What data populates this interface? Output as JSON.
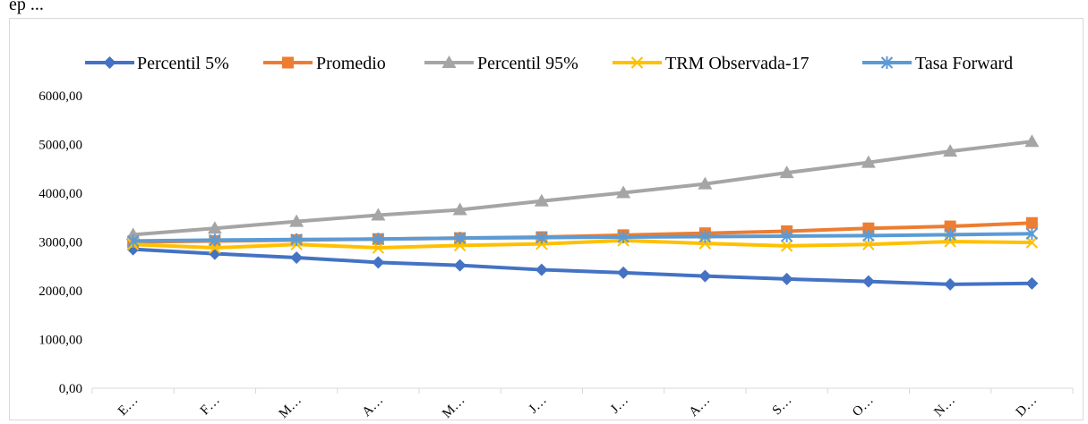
{
  "header": {
    "caption": "ep ... "
  },
  "chart_data": {
    "type": "line",
    "categories": [
      "E…",
      "F…",
      "M…",
      "A…",
      "M…",
      "J…",
      "J…",
      "A…",
      "S…",
      "O…",
      "N…",
      "D…"
    ],
    "ylim": [
      0,
      6000
    ],
    "yticks": [
      "0,00",
      "1000,00",
      "2000,00",
      "3000,00",
      "4000,00",
      "5000,00",
      "6000,00"
    ],
    "grid": false,
    "legend_position": "top",
    "series": [
      {
        "name": "Percentil 5%",
        "color": "#4472c4",
        "marker": "diamond",
        "values": [
          2850,
          2760,
          2680,
          2580,
          2520,
          2430,
          2370,
          2300,
          2240,
          2190,
          2130,
          2150
        ]
      },
      {
        "name": "Promedio",
        "color": "#ed7d31",
        "marker": "square",
        "values": [
          3000,
          3020,
          3040,
          3060,
          3080,
          3100,
          3140,
          3180,
          3220,
          3280,
          3320,
          3390
        ]
      },
      {
        "name": "Percentil 95%",
        "color": "#a5a5a5",
        "marker": "triangle",
        "values": [
          3150,
          3280,
          3420,
          3550,
          3660,
          3840,
          4010,
          4190,
          4420,
          4630,
          4860,
          5060
        ]
      },
      {
        "name": "TRM Observada-17",
        "color": "#ffc000",
        "marker": "x",
        "values": [
          2950,
          2880,
          2950,
          2880,
          2930,
          2960,
          3030,
          2970,
          2920,
          2950,
          3010,
          2990
        ]
      },
      {
        "name": "Tasa Forward",
        "color": "#5b9bd5",
        "marker": "asterisk",
        "values": [
          3020,
          3040,
          3050,
          3060,
          3080,
          3090,
          3100,
          3110,
          3120,
          3130,
          3150,
          3170
        ]
      }
    ]
  }
}
